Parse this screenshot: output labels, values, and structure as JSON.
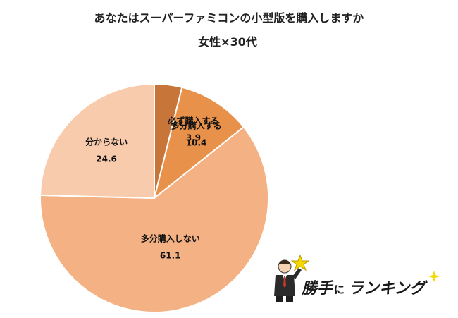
{
  "chart_data": {
    "type": "pie",
    "title": "あなたはスーパーファミコンの小型版を購入しますか",
    "subtitle": "女性×30代",
    "categories": [
      "必ず購入する",
      "多分購入する",
      "多分購入しない",
      "分からない"
    ],
    "values": [
      3.9,
      10.4,
      61.1,
      24.6
    ],
    "value_labels": [
      "3.9",
      "10.4",
      "61.1",
      "24.6"
    ],
    "colors": [
      "#c8753a",
      "#e8914a",
      "#f4b183",
      "#f8cbad"
    ],
    "start_angle": "12 o'clock",
    "direction": "clockwise",
    "legend": "none"
  },
  "logo": {
    "text_main": "勝手",
    "text_small": "に",
    "text_tail": "ランキング",
    "icon_name": "businessman-with-star-icon",
    "accent_color": "#f5d800"
  }
}
